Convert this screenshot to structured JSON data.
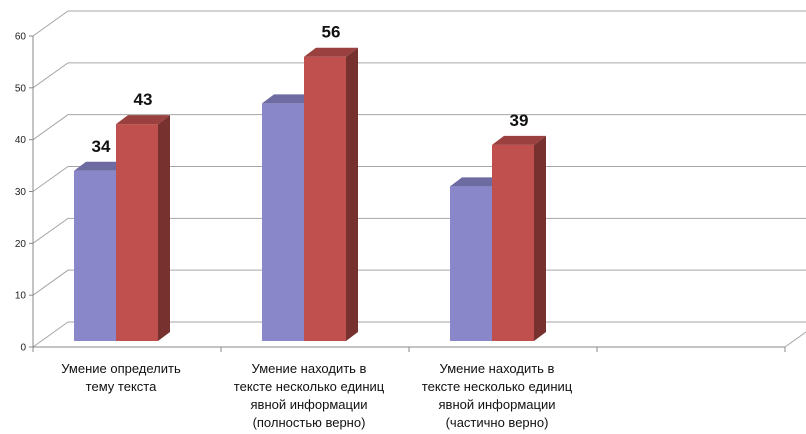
{
  "chart_data": {
    "type": "bar",
    "ylim": [
      0,
      60
    ],
    "yticks": [
      0,
      10,
      20,
      30,
      40,
      50,
      60
    ],
    "grid": true,
    "categories": [
      [
        "Умение определить",
        "тему текста"
      ],
      [
        "Умение находить в",
        "тексте несколько единиц",
        "явной информации",
        "(полностью верно)"
      ],
      [
        "Умение находить в",
        "тексте несколько единиц",
        "явной информации",
        "(частично верно)"
      ],
      [
        ""
      ]
    ],
    "series": [
      {
        "values": [
          34,
          47,
          31,
          null
        ],
        "color": "#8A86CA",
        "labels": [
          "34",
          "",
          "",
          ""
        ]
      },
      {
        "values": [
          43,
          56,
          39,
          null
        ],
        "color": "#C0504D",
        "labels": [
          "43",
          "56",
          "39",
          ""
        ]
      }
    ]
  }
}
